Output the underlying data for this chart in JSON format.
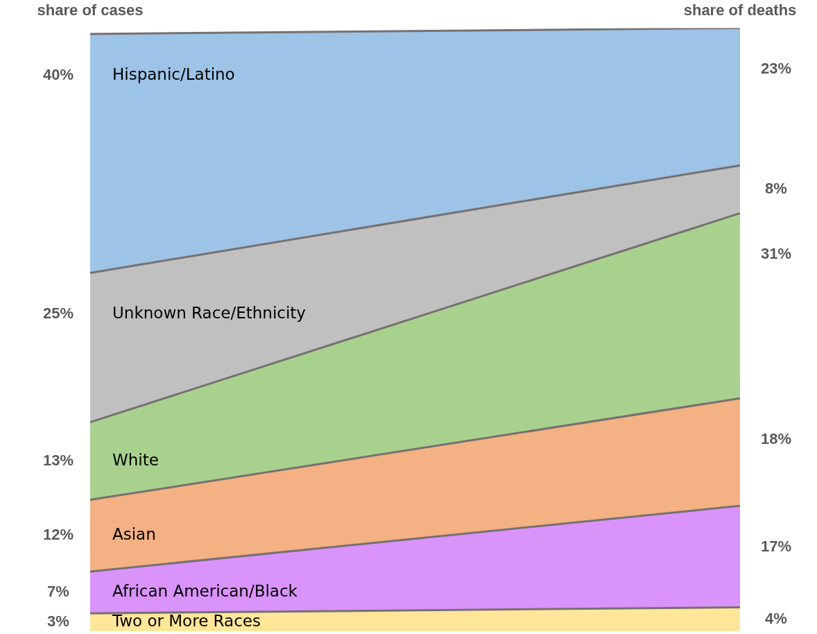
{
  "chart_data": {
    "type": "area",
    "stacked": true,
    "categories": [
      "share of cases",
      "share of deaths"
    ],
    "legend": false,
    "grid": false,
    "series": [
      {
        "name": "Two or More Races",
        "color": "#ffe699",
        "values": [
          3,
          4
        ],
        "value_labels": [
          "3%",
          "4%"
        ]
      },
      {
        "name": "African American/Black",
        "color": "#d993fb",
        "values": [
          7,
          17
        ],
        "value_labels": [
          "7%",
          "17%"
        ]
      },
      {
        "name": "Asian",
        "color": "#f4b183",
        "values": [
          12,
          18
        ],
        "value_labels": [
          "12%",
          "18%"
        ]
      },
      {
        "name": "White",
        "color": "#a9d18e",
        "values": [
          13,
          31
        ],
        "value_labels": [
          "13%",
          "31%"
        ]
      },
      {
        "name": "Unknown Race/Ethnicity",
        "color": "#c0c0c0",
        "values": [
          25,
          8
        ],
        "value_labels": [
          "25%",
          "8%"
        ]
      },
      {
        "name": "Hispanic/Latino",
        "color": "#9dc3e6",
        "values": [
          40,
          23
        ],
        "value_labels": [
          "40%",
          "23%"
        ]
      }
    ]
  }
}
